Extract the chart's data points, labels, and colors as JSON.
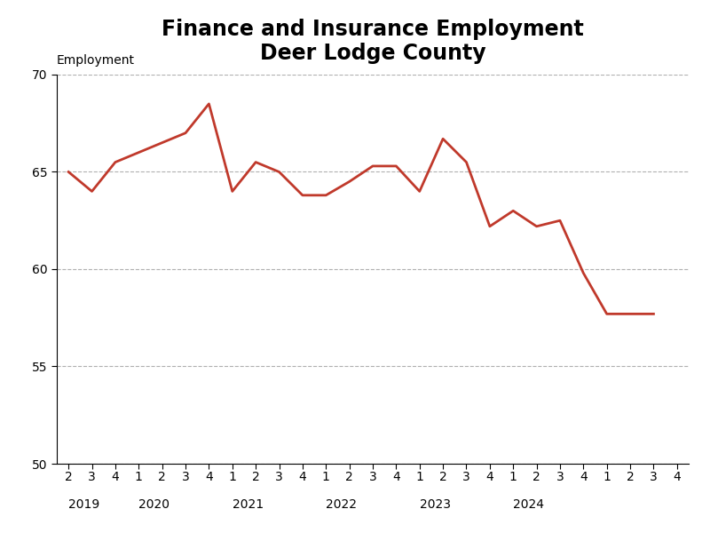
{
  "title_line1": "Finance and Insurance Employment",
  "title_line2": "Deer Lodge County",
  "ylabel": "Employment",
  "line_color": "#C0392B",
  "line_width": 2.0,
  "background_color": "#ffffff",
  "ylim": [
    50,
    70
  ],
  "yticks": [
    50,
    55,
    60,
    65,
    70
  ],
  "grid_color": "#b0b0b0",
  "grid_linestyle": "--",
  "x_values": [
    0,
    1,
    2,
    3,
    4,
    5,
    6,
    7,
    8,
    9,
    10,
    11,
    12,
    13,
    14,
    15,
    16,
    17,
    18,
    19,
    20,
    21,
    22,
    23,
    24,
    25
  ],
  "y_values": [
    65.0,
    64.0,
    65.5,
    66.0,
    66.5,
    67.0,
    68.5,
    64.0,
    65.5,
    65.0,
    63.8,
    63.8,
    64.5,
    65.3,
    65.3,
    64.0,
    66.7,
    65.5,
    62.2,
    63.0,
    62.2,
    62.5,
    59.8,
    57.7,
    57.7,
    57.7
  ],
  "quarter_tick_positions": [
    0,
    1,
    2,
    3,
    4,
    5,
    6,
    7,
    8,
    9,
    10,
    11,
    12,
    13,
    14,
    15,
    16,
    17,
    18,
    19,
    20,
    21,
    22,
    23,
    24,
    25,
    26
  ],
  "quarter_tick_labels": [
    "2",
    "3",
    "4",
    "1",
    "2",
    "3",
    "4",
    "1",
    "2",
    "3",
    "4",
    "1",
    "2",
    "3",
    "4",
    "1",
    "2",
    "3",
    "4",
    "1",
    "2",
    "3",
    "4",
    "1",
    "2",
    "3",
    "4"
  ],
  "year_labels": [
    "2019",
    "2020",
    "2021",
    "2022",
    "2023",
    "2024"
  ],
  "year_tick_positions": [
    0,
    3,
    7,
    11,
    15,
    19
  ],
  "xlim": [
    -0.5,
    26.5
  ],
  "title_fontsize": 17,
  "axis_label_fontsize": 10,
  "tick_fontsize": 10,
  "year_fontsize": 10
}
